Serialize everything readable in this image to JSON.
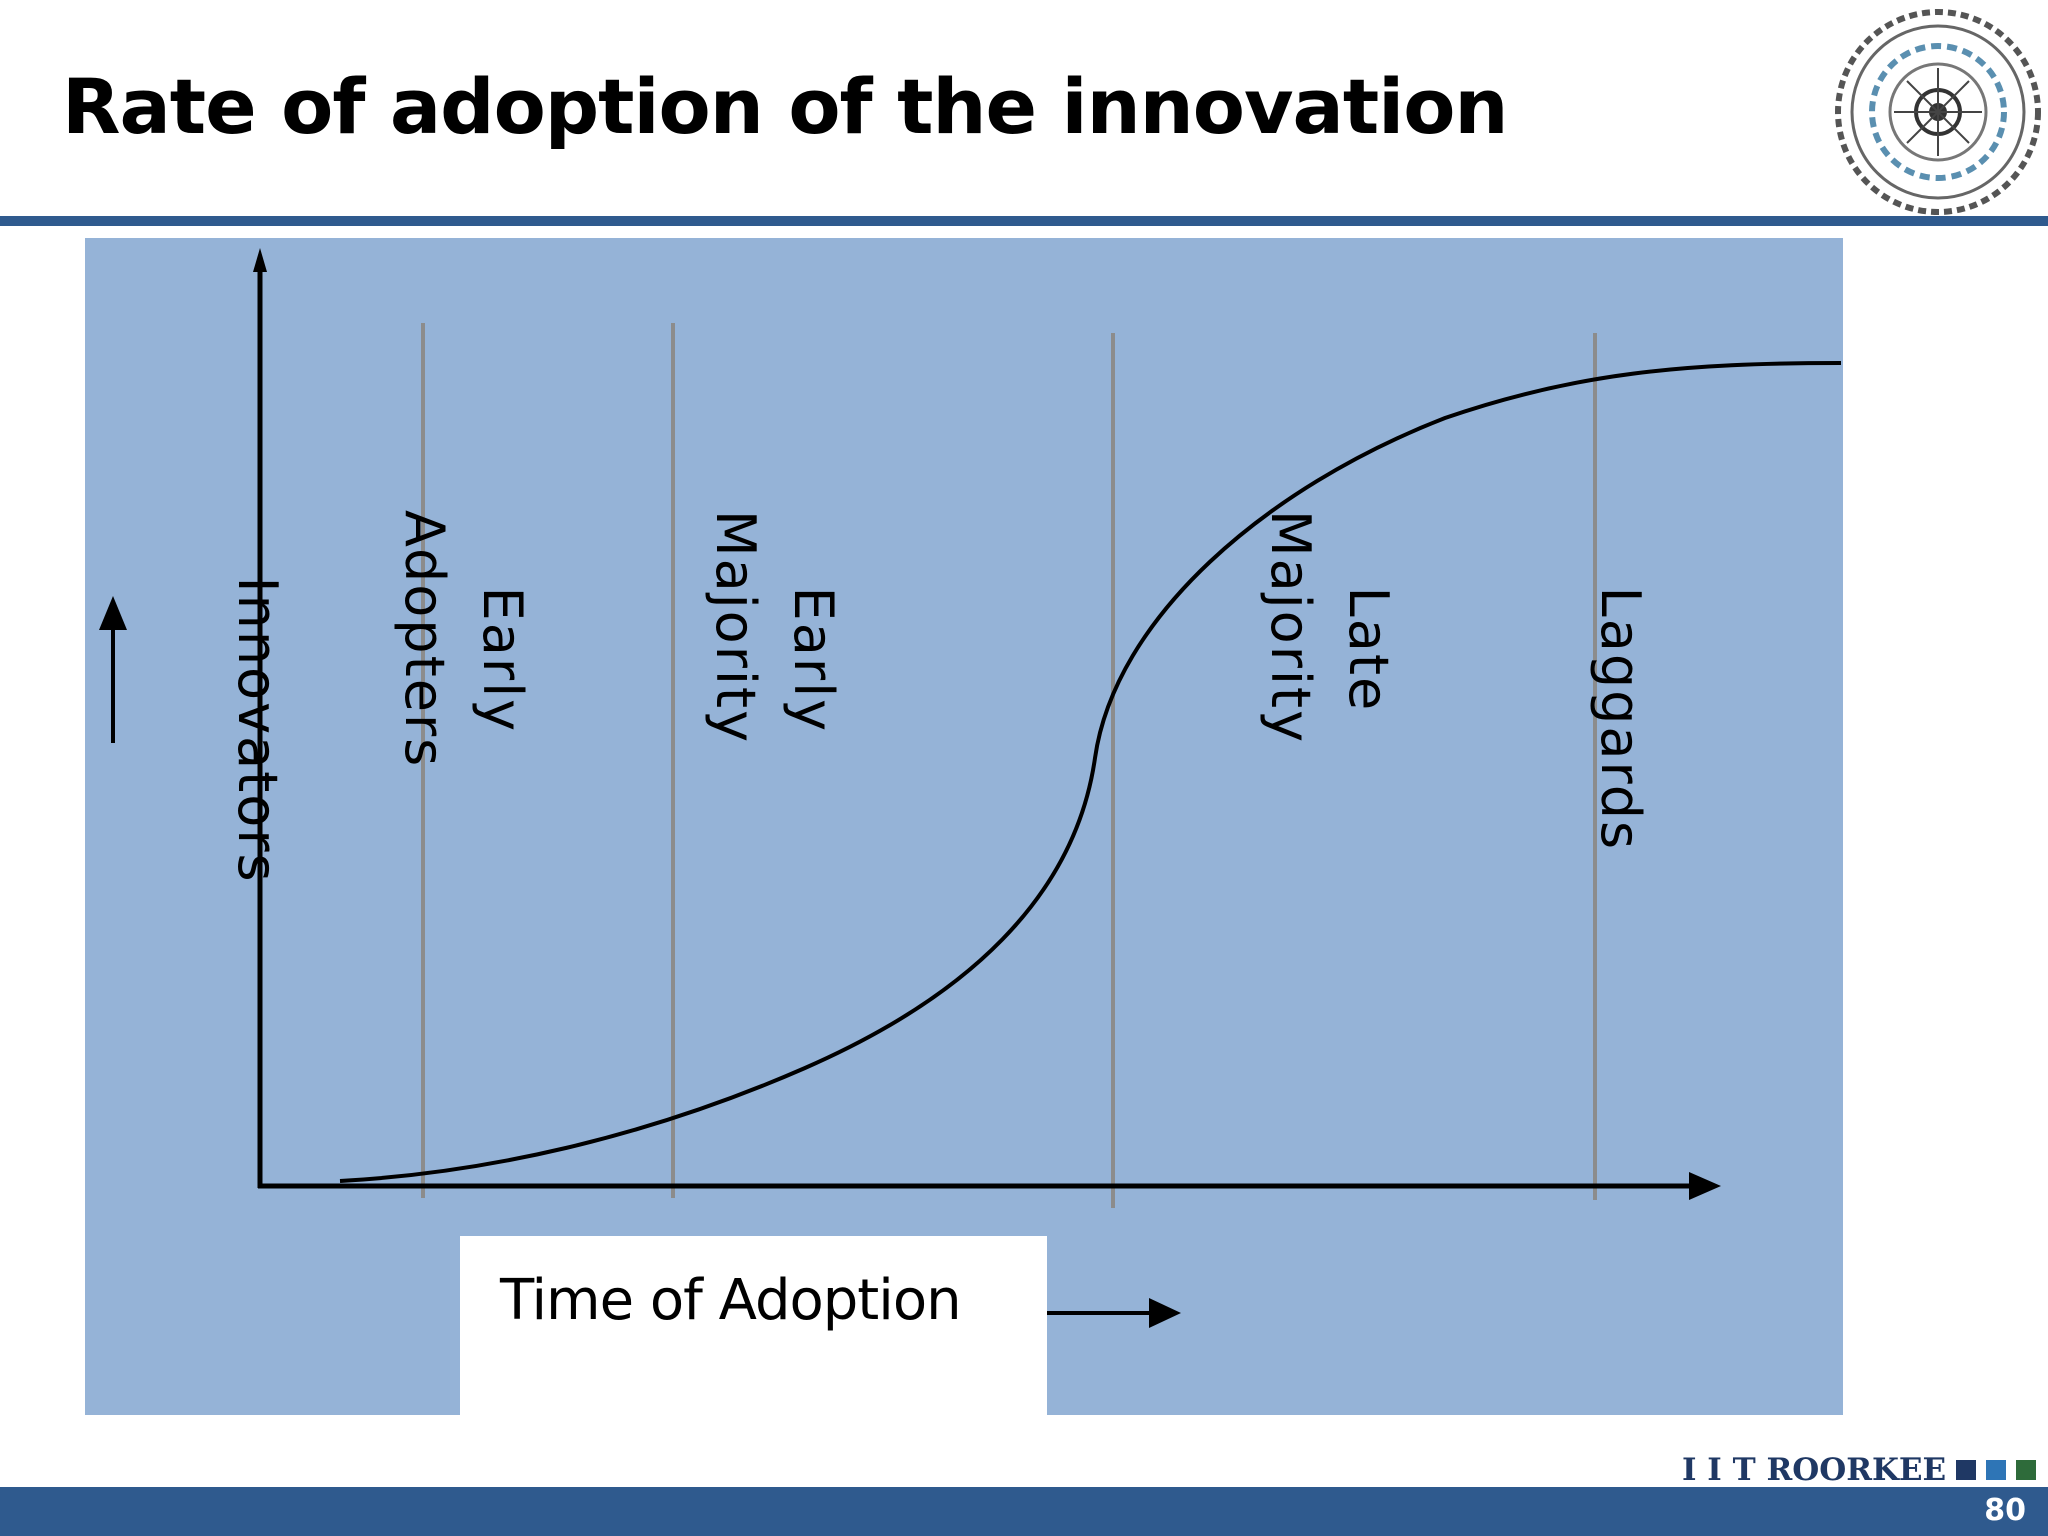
{
  "slide": {
    "title": "Rate of adoption of the innovation",
    "page_number": "80"
  },
  "logo": {
    "footer_text": "I I T ROORKEE",
    "emblem_icon": "iit-roorkee-emblem-icon",
    "square_colors": [
      "#1f3864",
      "#2e75b6",
      "#2e6b3a"
    ]
  },
  "diagram": {
    "background_color": "#95b3d7",
    "x_axis_label": "Time of Adoption",
    "categories": [
      {
        "id": "innovators",
        "lines": [
          "Innovators"
        ]
      },
      {
        "id": "early-adopters",
        "lines": [
          "Early",
          "Adopters"
        ]
      },
      {
        "id": "early-majority",
        "lines": [
          "Early",
          "Majority"
        ]
      },
      {
        "id": "late-majority",
        "lines": [
          "Late",
          "Majority"
        ]
      },
      {
        "id": "laggards",
        "lines": [
          "Laggards"
        ]
      }
    ]
  }
}
